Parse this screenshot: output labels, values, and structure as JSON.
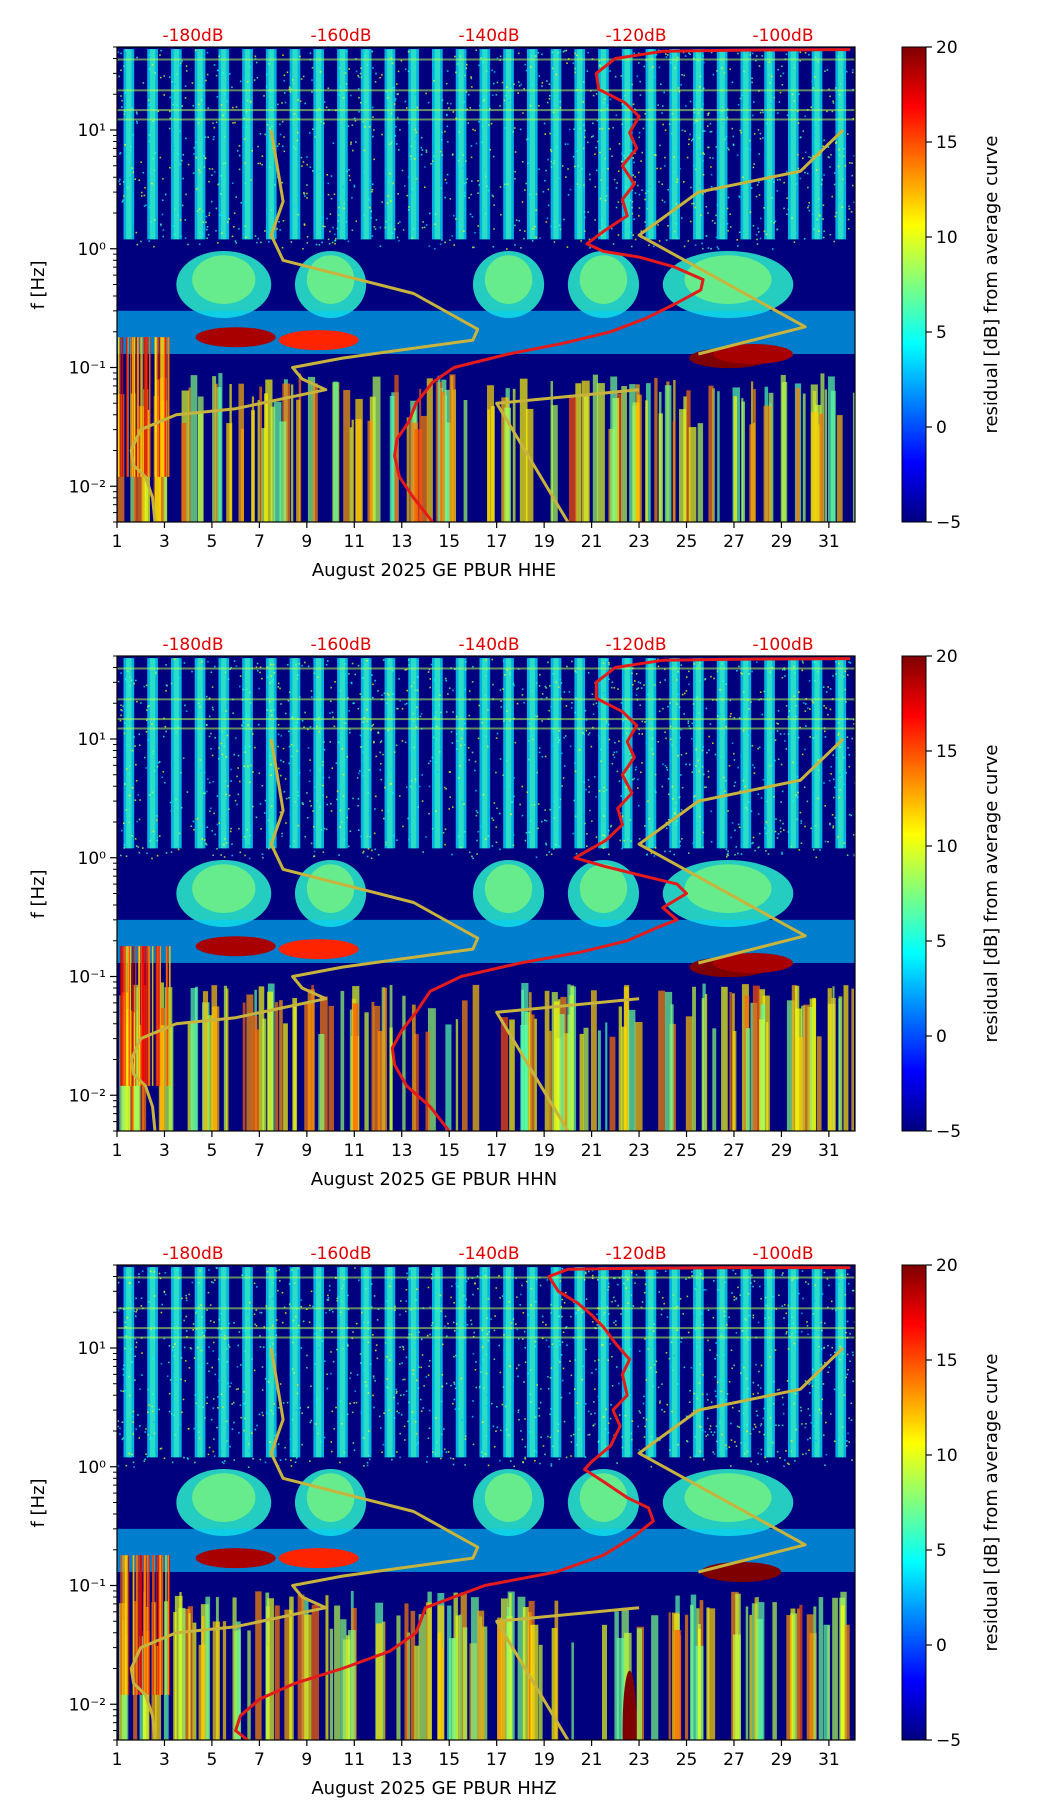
{
  "colors": {
    "spectrogram_background": "#00007f",
    "average_curve": "#e51a1a",
    "noise_model_curve": "#c8b43c",
    "db_scale_text": "#e00000"
  },
  "colormap": {
    "name": "jet",
    "stops": [
      "#00007f",
      "#0000ff",
      "#007fff",
      "#00ffff",
      "#7fff7f",
      "#ffff00",
      "#ff7f00",
      "#ff0000",
      "#7f0000"
    ]
  },
  "chart_data": [
    {
      "type": "heatmap",
      "component": "HHE",
      "xlabel": "August 2025 GE PBUR  HHE",
      "ylabel": "f [Hz]",
      "x_ticks": [
        "1",
        "3",
        "5",
        "7",
        "9",
        "11",
        "13",
        "15",
        "17",
        "19",
        "21",
        "23",
        "25",
        "27",
        "29",
        "31"
      ],
      "x_range": [
        1,
        32
      ],
      "y_scale": "log",
      "y_range": [
        0.005,
        50
      ],
      "y_ticks": [
        {
          "value": 0.01,
          "label": "10⁻²"
        },
        {
          "value": 0.1,
          "label": "10⁻¹"
        },
        {
          "value": 1,
          "label": "10⁰"
        },
        {
          "value": 10,
          "label": "10¹"
        }
      ],
      "top_axis_ticks": [
        "-180dB",
        "-160dB",
        "-140dB",
        "-120dB",
        "-100dB"
      ],
      "top_axis_db": [
        -180,
        -160,
        -140,
        -120,
        -100
      ],
      "colorbar": {
        "label": "residual [dB] from average curve",
        "min": -5,
        "max": 20,
        "ticks": [
          "−5",
          "0",
          "5",
          "10",
          "15",
          "20"
        ],
        "tick_values": [
          -5,
          0,
          5,
          10,
          15,
          20
        ]
      },
      "average_curve": {
        "x_days": [
          14.3,
          13.5,
          12.9,
          12.7,
          12.8,
          13.3,
          13.6,
          14.3,
          15.2,
          17.5,
          19.8,
          21.8,
          23.3,
          24.6,
          25.6,
          25.7,
          24.5,
          23.0,
          21.5,
          20.8,
          21.5,
          22.5,
          22.3,
          22.8,
          22.3,
          22.9,
          22.6,
          23.0,
          22.4,
          21.3,
          21.2,
          22.0,
          24.0,
          27.0,
          31.9
        ],
        "freq_hz": [
          0.005,
          0.008,
          0.012,
          0.018,
          0.025,
          0.035,
          0.05,
          0.075,
          0.1,
          0.13,
          0.16,
          0.2,
          0.26,
          0.35,
          0.45,
          0.55,
          0.7,
          0.85,
          0.95,
          1.1,
          1.4,
          1.9,
          2.6,
          3.5,
          5.0,
          7.0,
          9.5,
          13.0,
          17.0,
          22.0,
          30.0,
          40.0,
          46.0,
          47.0,
          47.5
        ]
      },
      "noise_model_curve": {
        "x_days": [
          2.6,
          2.5,
          2.2,
          1.7,
          1.6,
          2.0,
          3.5,
          6.0,
          9.8,
          8.8,
          8.4,
          10.5,
          16.0,
          16.2,
          13.5,
          8.0,
          7.5,
          8.0,
          7.5,
          17.0,
          20.0,
          17.0,
          23.0,
          25.5,
          30.0,
          23.0,
          25.5,
          29.8,
          31.6
        ],
        "freq_hz": [
          0.005,
          0.008,
          0.012,
          0.015,
          0.02,
          0.03,
          0.04,
          0.045,
          0.065,
          0.08,
          0.1,
          0.12,
          0.17,
          0.21,
          0.42,
          0.8,
          1.3,
          2.5,
          10.0,
          0.05,
          0.005,
          0.05,
          0.065,
          0.13,
          0.22,
          1.3,
          3.0,
          4.5,
          10.0
        ]
      },
      "hot_spots": [
        {
          "day": 6.0,
          "freq_hz": 0.18,
          "residual_db": 19
        },
        {
          "day": 9.5,
          "freq_hz": 0.17,
          "residual_db": 16
        },
        {
          "day": 26.8,
          "freq_hz": 0.12,
          "residual_db": 20
        },
        {
          "day": 27.8,
          "freq_hz": 0.13,
          "residual_db": 19
        }
      ]
    },
    {
      "type": "heatmap",
      "component": "HHN",
      "xlabel": "August 2025 GE PBUR  HHN",
      "ylabel": "f [Hz]",
      "x_ticks": [
        "1",
        "3",
        "5",
        "7",
        "9",
        "11",
        "13",
        "15",
        "17",
        "19",
        "21",
        "23",
        "25",
        "27",
        "29",
        "31"
      ],
      "x_range": [
        1,
        32
      ],
      "y_scale": "log",
      "y_range": [
        0.005,
        50
      ],
      "y_ticks": [
        {
          "value": 0.01,
          "label": "10⁻²"
        },
        {
          "value": 0.1,
          "label": "10⁻¹"
        },
        {
          "value": 1,
          "label": "10⁰"
        },
        {
          "value": 10,
          "label": "10¹"
        }
      ],
      "top_axis_ticks": [
        "-180dB",
        "-160dB",
        "-140dB",
        "-120dB",
        "-100dB"
      ],
      "top_axis_db": [
        -180,
        -160,
        -140,
        -120,
        -100
      ],
      "colorbar": {
        "label": "residual [dB] from average curve",
        "min": -5,
        "max": 20,
        "ticks": [
          "−5",
          "0",
          "5",
          "10",
          "15",
          "20"
        ],
        "tick_values": [
          -5,
          0,
          5,
          10,
          15,
          20
        ]
      },
      "average_curve": {
        "x_days": [
          15.0,
          14.2,
          13.2,
          12.7,
          12.6,
          13.0,
          13.6,
          14.2,
          15.5,
          18.0,
          20.5,
          22.5,
          23.8,
          24.6,
          24.0,
          25.0,
          24.6,
          23.2,
          21.5,
          20.3,
          21.6,
          22.3,
          22.1,
          22.7,
          22.3,
          22.8,
          22.5,
          22.9,
          22.3,
          21.2,
          21.2,
          22.0,
          24.0,
          27.0,
          31.9
        ],
        "freq_hz": [
          0.005,
          0.008,
          0.012,
          0.018,
          0.025,
          0.035,
          0.05,
          0.075,
          0.1,
          0.13,
          0.16,
          0.2,
          0.26,
          0.3,
          0.38,
          0.5,
          0.6,
          0.7,
          0.85,
          1.0,
          1.4,
          1.9,
          2.6,
          3.5,
          5.0,
          7.0,
          9.5,
          13.0,
          17.0,
          22.0,
          30.0,
          40.0,
          46.0,
          47.0,
          47.5
        ]
      },
      "noise_model_curve": {
        "x_days": [
          2.6,
          2.5,
          2.2,
          1.7,
          1.6,
          2.0,
          3.5,
          6.0,
          9.8,
          8.8,
          8.4,
          10.5,
          16.0,
          16.2,
          13.5,
          8.0,
          7.5,
          8.0,
          7.5,
          17.0,
          20.0,
          17.0,
          23.0,
          25.5,
          30.0,
          23.0,
          25.5,
          29.8,
          31.6
        ],
        "freq_hz": [
          0.005,
          0.008,
          0.012,
          0.015,
          0.02,
          0.03,
          0.04,
          0.045,
          0.065,
          0.08,
          0.1,
          0.12,
          0.17,
          0.21,
          0.42,
          0.8,
          1.3,
          2.5,
          10.0,
          0.05,
          0.005,
          0.05,
          0.065,
          0.13,
          0.22,
          1.3,
          3.0,
          4.5,
          10.0
        ]
      },
      "hot_spots": [
        {
          "day": 6.0,
          "freq_hz": 0.18,
          "residual_db": 19
        },
        {
          "day": 9.5,
          "freq_hz": 0.17,
          "residual_db": 16
        },
        {
          "day": 26.8,
          "freq_hz": 0.12,
          "residual_db": 20
        },
        {
          "day": 27.8,
          "freq_hz": 0.13,
          "residual_db": 19
        }
      ]
    },
    {
      "type": "heatmap",
      "component": "HHZ",
      "xlabel": "August 2025 GE PBUR  HHZ",
      "ylabel": "f [Hz]",
      "x_ticks": [
        "1",
        "3",
        "5",
        "7",
        "9",
        "11",
        "13",
        "15",
        "17",
        "19",
        "21",
        "23",
        "25",
        "27",
        "29",
        "31"
      ],
      "x_range": [
        1,
        32
      ],
      "y_scale": "log",
      "y_range": [
        0.005,
        50
      ],
      "y_ticks": [
        {
          "value": 0.01,
          "label": "10⁻²"
        },
        {
          "value": 0.1,
          "label": "10⁻¹"
        },
        {
          "value": 1,
          "label": "10⁰"
        },
        {
          "value": 10,
          "label": "10¹"
        }
      ],
      "top_axis_ticks": [
        "-180dB",
        "-160dB",
        "-140dB",
        "-120dB",
        "-100dB"
      ],
      "top_axis_db": [
        -180,
        -160,
        -140,
        -120,
        -100
      ],
      "colorbar": {
        "label": "residual [dB] from average curve",
        "min": -5,
        "max": 20,
        "ticks": [
          "−5",
          "0",
          "5",
          "10",
          "15",
          "20"
        ],
        "tick_values": [
          -5,
          0,
          5,
          10,
          15,
          20
        ]
      },
      "average_curve": {
        "x_days": [
          6.5,
          6.0,
          6.2,
          7.0,
          8.5,
          10.5,
          12.5,
          13.6,
          14.0,
          16.5,
          19.5,
          21.5,
          22.8,
          23.6,
          23.4,
          22.5,
          21.5,
          20.7,
          21.0,
          21.8,
          22.2,
          21.9,
          22.5,
          22.3,
          22.6,
          22.0,
          21.5,
          21.0,
          20.4,
          19.6,
          19.2,
          20.0,
          23.0,
          27.0,
          31.9
        ],
        "freq_hz": [
          0.005,
          0.006,
          0.008,
          0.011,
          0.015,
          0.02,
          0.028,
          0.04,
          0.065,
          0.1,
          0.13,
          0.18,
          0.26,
          0.35,
          0.45,
          0.55,
          0.75,
          0.95,
          1.1,
          1.5,
          2.2,
          3.0,
          4.0,
          6.0,
          8.0,
          11.0,
          15.0,
          19.0,
          24.0,
          30.0,
          40.0,
          46.0,
          47.0,
          47.5,
          47.5
        ]
      },
      "noise_model_curve": {
        "x_days": [
          2.6,
          2.5,
          2.2,
          1.7,
          1.6,
          2.0,
          3.5,
          6.0,
          9.8,
          8.8,
          8.4,
          10.5,
          16.0,
          16.2,
          13.5,
          8.0,
          7.5,
          8.0,
          7.5,
          17.0,
          20.0,
          17.0,
          23.0,
          25.5,
          30.0,
          23.0,
          25.5,
          29.8,
          31.6
        ],
        "freq_hz": [
          0.005,
          0.008,
          0.012,
          0.015,
          0.02,
          0.03,
          0.04,
          0.045,
          0.065,
          0.08,
          0.1,
          0.12,
          0.17,
          0.21,
          0.42,
          0.8,
          1.3,
          2.5,
          10.0,
          0.05,
          0.005,
          0.05,
          0.065,
          0.13,
          0.22,
          1.3,
          3.0,
          4.5,
          10.0
        ]
      },
      "hot_spots": [
        {
          "day": 6.0,
          "freq_hz": 0.17,
          "residual_db": 19
        },
        {
          "day": 9.5,
          "freq_hz": 0.17,
          "residual_db": 16
        },
        {
          "day": 22.6,
          "freq_hz": 0.006,
          "residual_db": 20
        },
        {
          "day": 27.3,
          "freq_hz": 0.13,
          "residual_db": 20
        }
      ]
    }
  ]
}
